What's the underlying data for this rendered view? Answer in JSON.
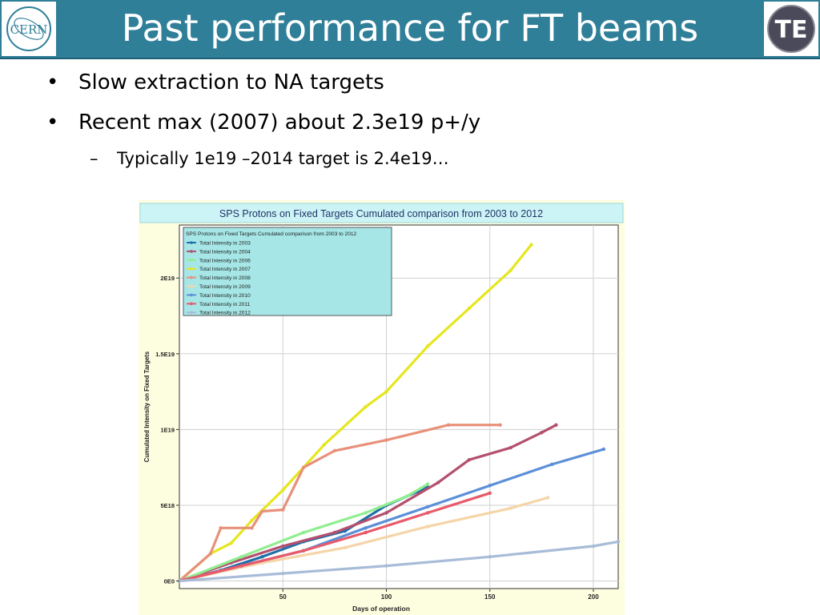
{
  "slide": {
    "title": "Past performance for FT beams",
    "logo_left_text": "CERN",
    "logo_right_text": "TE",
    "bullets": [
      {
        "marker": "•",
        "text": "Slow extraction to NA targets"
      },
      {
        "marker": "•",
        "text": "Recent max (2007) about 2.3e19 p+/y"
      },
      {
        "marker": "–",
        "text": "Typically 1e19 –2014 target is 2.4e19…"
      }
    ],
    "colors": {
      "header": "#2f7f99",
      "plot_bg": "#fdfde0",
      "title_bar": "#ccf4f6",
      "legend_bg": "#a6e6e6"
    }
  },
  "chart_data": {
    "type": "line",
    "title": "SPS Protons on Fixed Targets Cumulated comparison from 2003 to 2012",
    "xlabel": "Days of operation",
    "ylabel": "Cumulated Intensity on Fixed Targets",
    "xlim": [
      0,
      212
    ],
    "ylim": [
      -5e+17,
      2.35e+19
    ],
    "xticks": [
      50,
      100,
      150,
      200
    ],
    "xtick_labels": [
      "50",
      "100",
      "150",
      "200"
    ],
    "yticks": [
      0,
      5e+18,
      1e+19,
      1.5e+19,
      2e+19
    ],
    "ytick_labels": [
      "0E0",
      "5E18",
      "1E19",
      "1.5E19",
      "2E19"
    ],
    "grid": true,
    "legend_title": "SPS Protons on Fixed Targets Cumulated comparison from 2003 to 2012",
    "legend_position": "top-left",
    "series": [
      {
        "name": "Total Intensity in 2003",
        "color": "#1f6fa8",
        "x": [
          0,
          20,
          40,
          60,
          80,
          100,
          115,
          120
        ],
        "y": [
          0,
          7e+17,
          1.6e+18,
          2.6e+18,
          3.3e+18,
          5e+18,
          5.9e+18,
          6.2e+18
        ]
      },
      {
        "name": "Total Intensity in 2004",
        "color": "#b4506e",
        "x": [
          0,
          25,
          50,
          75,
          100,
          125,
          140,
          160,
          175,
          182
        ],
        "y": [
          0,
          1.2e+18,
          2.3e+18,
          3.2e+18,
          4.5e+18,
          6.5e+18,
          8e+18,
          8.8e+18,
          9.8e+18,
          1.03e+19
        ]
      },
      {
        "name": "Total Intensity in 2006",
        "color": "#90ee90",
        "x": [
          0,
          30,
          60,
          90,
          110,
          120
        ],
        "y": [
          0,
          1.6e+18,
          3.2e+18,
          4.5e+18,
          5.6e+18,
          6.4e+18
        ]
      },
      {
        "name": "Total Intensity in 2007",
        "color": "#e6e61e",
        "x": [
          0,
          15,
          25,
          35,
          50,
          70,
          90,
          100,
          120,
          140,
          160,
          170
        ],
        "y": [
          0,
          1.8e+18,
          2.5e+18,
          4e+18,
          6e+18,
          9e+18,
          1.15e+19,
          1.25e+19,
          1.55e+19,
          1.8e+19,
          2.05e+19,
          2.22e+19
        ]
      },
      {
        "name": "Total Intensity in 2008",
        "color": "#e8907a",
        "x": [
          0,
          15,
          20,
          35,
          40,
          50,
          60,
          75,
          100,
          130,
          155
        ],
        "y": [
          0,
          1.8e+18,
          3.5e+18,
          3.5e+18,
          4.6e+18,
          4.7e+18,
          7.5e+18,
          8.6e+18,
          9.3e+18,
          1.03e+19,
          1.03e+19
        ]
      },
      {
        "name": "Total Intensity in 2009",
        "color": "#f5d5a8",
        "x": [
          0,
          40,
          80,
          120,
          160,
          178
        ],
        "y": [
          0,
          1.2e+18,
          2.2e+18,
          3.6e+18,
          4.8e+18,
          5.5e+18
        ]
      },
      {
        "name": "Total Intensity in 2010",
        "color": "#5b8fd8",
        "x": [
          0,
          30,
          60,
          90,
          120,
          150,
          180,
          205
        ],
        "y": [
          0,
          1e+18,
          2e+18,
          3.5e+18,
          4.9e+18,
          6.3e+18,
          7.7e+18,
          8.7e+18
        ]
      },
      {
        "name": "Total Intensity in 2011",
        "color": "#e85a6a",
        "x": [
          0,
          30,
          60,
          90,
          120,
          150
        ],
        "y": [
          0,
          1e+18,
          2e+18,
          3.2e+18,
          4.5e+18,
          5.8e+18
        ]
      },
      {
        "name": "Total Intensity in 2012",
        "color": "#a8bcd8",
        "x": [
          0,
          50,
          100,
          150,
          200,
          212
        ],
        "y": [
          0,
          5e+17,
          1e+18,
          1.6e+18,
          2.3e+18,
          2.6e+18
        ]
      }
    ]
  }
}
